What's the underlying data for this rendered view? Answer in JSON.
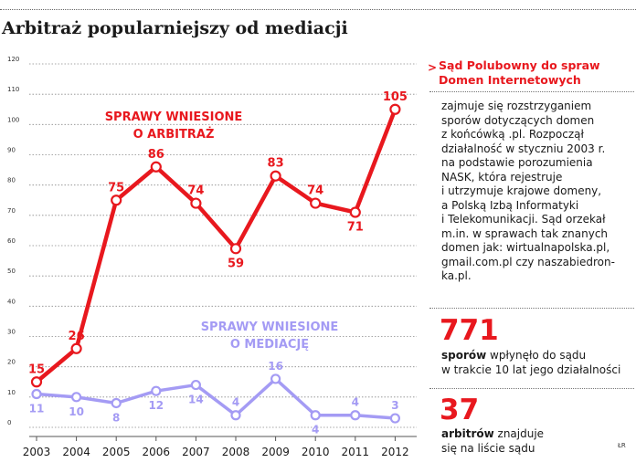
{
  "title": "Arbitraż popularniejszy od mediacji",
  "colors": {
    "arbitration": "#e8181e",
    "mediation": "#a49bf4",
    "grid": "#8a8a8a",
    "text": "#1a1a1a"
  },
  "chart_data": {
    "type": "line",
    "categories": [
      "2003",
      "2004",
      "2005",
      "2006",
      "2007",
      "2008",
      "2009",
      "2010",
      "2011",
      "2012"
    ],
    "series": [
      {
        "name": "SPRAWY WNIESIONE O ARBITRAŻ",
        "color": "#e8181e",
        "values": [
          15,
          26,
          75,
          86,
          74,
          59,
          83,
          74,
          71,
          105
        ],
        "data_labels": [
          "15",
          "26",
          "75",
          "86",
          "74",
          "59",
          "83",
          "74",
          "71",
          "105"
        ]
      },
      {
        "name": "SPRAWY WNIESIONE O MEDIACJĘ",
        "color": "#a49bf4",
        "values": [
          11,
          10,
          8,
          12,
          14,
          4,
          16,
          4,
          4,
          3
        ],
        "data_labels": [
          "11",
          "10",
          "8",
          "12",
          "14",
          "4",
          "16",
          "4",
          "4",
          "3"
        ]
      }
    ],
    "ylim": [
      0,
      120
    ],
    "yticks": [
      "0",
      "10",
      "20",
      "30",
      "40",
      "50",
      "60",
      "70",
      "80",
      "90",
      "100",
      "110",
      "120"
    ],
    "grid": true,
    "xlabel": "",
    "ylabel": ""
  },
  "series_labels": {
    "arbitration_line1": "SPRAWY WNIESIONE",
    "arbitration_line2": "O ARBITRAŻ",
    "mediation_line1": "SPRAWY WNIESIONE",
    "mediation_line2": "O MEDIACJĘ"
  },
  "sidebar": {
    "marker": ">",
    "title_line1": "Sąd Polubowny do spraw",
    "title_line2": "Domen Internetowych",
    "body_lines": [
      "zajmuje się rozstrzyganiem",
      "sporów dotyczących domen",
      "z końcówką .pl. Rozpoczął",
      "działalność w styczniu 2003 r.",
      "na podstawie porozumienia",
      "NASK, która rejestruje",
      "i utrzymuje krajowe domeny,",
      "a Polską Izbą Informatyki",
      "i Telekomunikacji. Sąd orzekał",
      "m.in.  w sprawach tak znanych",
      "domen jak: wirtualnapolska.pl,",
      "gmail.com.pl czy naszabiedron-",
      "ka.pl."
    ],
    "stat1": {
      "number": "771",
      "bold_word": "sporów",
      "line1_rest": " wpłynęło do sądu",
      "line2": "w trakcie 10 lat jego działalności"
    },
    "stat2": {
      "number": "37",
      "bold_word": "arbitrów",
      "line1_rest": " znajduje",
      "line2": "się na liście sądu"
    }
  },
  "credit": "ŁR"
}
